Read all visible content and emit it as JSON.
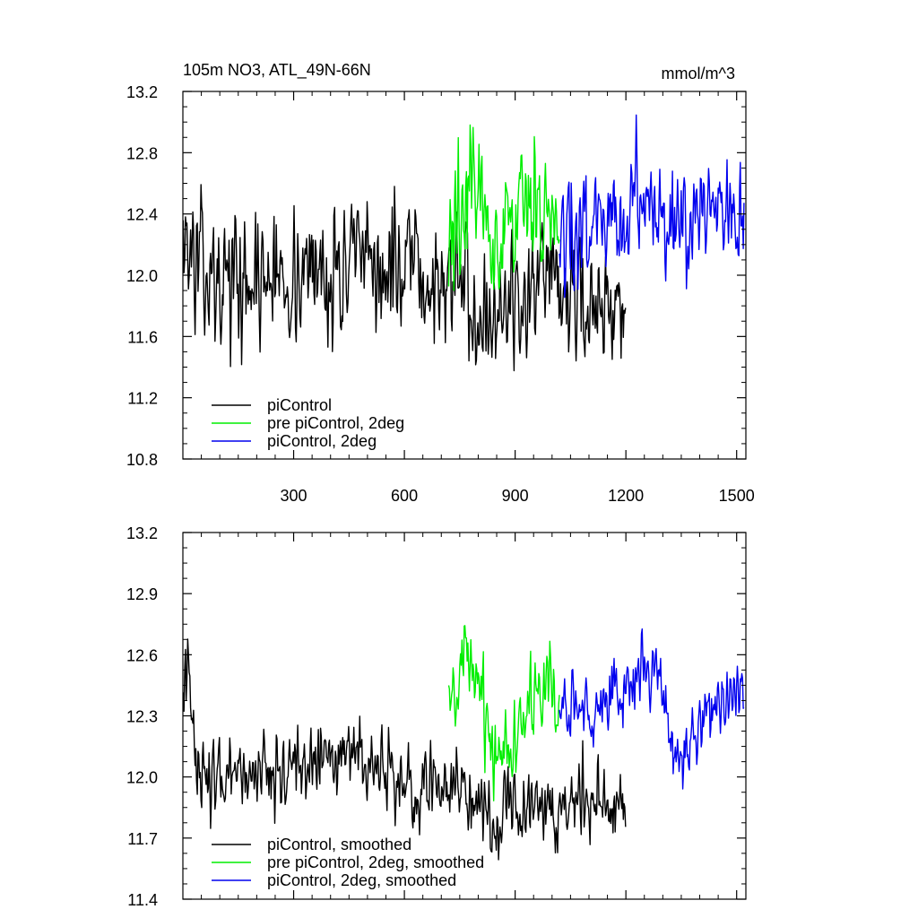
{
  "chart_data": [
    {
      "type": "line",
      "title": "105m NO3, ATL_49N-66N",
      "units_label": "mmol/m^3",
      "xlim": [
        0,
        1525
      ],
      "ylim": [
        10.8,
        13.2
      ],
      "x_ticks": [
        300,
        600,
        900,
        1200,
        1500
      ],
      "x_tick_labels": [
        "300",
        "600",
        "900",
        "1200",
        "1500"
      ],
      "y_ticks": [
        10.8,
        11.2,
        11.6,
        12.0,
        12.4,
        12.8,
        13.2
      ],
      "y_tick_labels": [
        "10.8",
        "11.2",
        "11.6",
        "12.0",
        "12.4",
        "12.8",
        "13.2"
      ],
      "legend_position": "bottom-left",
      "series": [
        {
          "name": "piControl",
          "color": "#000000",
          "x_start": 1,
          "x_end": 1200,
          "noise": 0.3,
          "trend_x": [
            0,
            20,
            100,
            300,
            500,
            700,
            750,
            850,
            900,
            1000,
            1100,
            1200
          ],
          "trend_y": [
            12.4,
            12.1,
            11.95,
            12.0,
            12.05,
            11.95,
            11.95,
            11.75,
            11.85,
            11.85,
            11.85,
            11.85
          ]
        },
        {
          "name": "pre piControl, 2deg",
          "color": "#00ee00",
          "x_start": 720,
          "x_end": 1020,
          "noise": 0.3,
          "trend_x": [
            720,
            760,
            800,
            850,
            900,
            950,
            1000,
            1020
          ],
          "trend_y": [
            12.2,
            12.5,
            12.6,
            12.2,
            12.4,
            12.4,
            12.5,
            12.2
          ]
        },
        {
          "name": "piControl, 2deg",
          "color": "#0000ee",
          "x_start": 1020,
          "x_end": 1520,
          "noise": 0.25,
          "trend_x": [
            1020,
            1100,
            1200,
            1250,
            1300,
            1350,
            1400,
            1450,
            1520
          ],
          "trend_y": [
            12.3,
            12.35,
            12.4,
            12.55,
            12.45,
            12.2,
            12.35,
            12.4,
            12.4
          ]
        }
      ]
    },
    {
      "type": "line",
      "title": "",
      "units_label": "",
      "xlim": [
        0,
        1525
      ],
      "ylim": [
        11.4,
        13.2
      ],
      "x_ticks": [
        300,
        600,
        900,
        1200,
        1500
      ],
      "x_tick_labels": [],
      "y_ticks": [
        11.4,
        11.7,
        12.0,
        12.3,
        12.6,
        12.9,
        13.2
      ],
      "y_tick_labels": [
        "11.4",
        "11.7",
        "12.0",
        "12.3",
        "12.6",
        "12.9",
        "13.2"
      ],
      "legend_position": "bottom-left",
      "series": [
        {
          "name": "piControl, smoothed",
          "color": "#000000",
          "x_start": 1,
          "x_end": 1200,
          "noise": 0.13,
          "trend_x": [
            0,
            10,
            50,
            100,
            200,
            300,
            450,
            600,
            700,
            800,
            850,
            900,
            1000,
            1100,
            1200
          ],
          "trend_y": [
            12.45,
            12.5,
            12.0,
            11.95,
            12.05,
            12.05,
            12.1,
            11.95,
            11.95,
            11.95,
            11.7,
            11.9,
            11.85,
            11.9,
            11.85
          ]
        },
        {
          "name": "pre piControl, 2deg, smoothed",
          "color": "#00ee00",
          "x_start": 720,
          "x_end": 1020,
          "noise": 0.14,
          "trend_x": [
            720,
            770,
            800,
            850,
            900,
            950,
            990,
            1020
          ],
          "trend_y": [
            12.3,
            12.55,
            12.45,
            12.1,
            12.25,
            12.35,
            12.45,
            12.3
          ]
        },
        {
          "name": "piControl, 2deg, smoothed",
          "color": "#0000ee",
          "x_start": 1020,
          "x_end": 1520,
          "noise": 0.12,
          "trend_x": [
            1020,
            1100,
            1200,
            1245,
            1300,
            1350,
            1400,
            1450,
            1520
          ],
          "trend_y": [
            12.3,
            12.35,
            12.4,
            12.6,
            12.45,
            12.0,
            12.3,
            12.35,
            12.4
          ]
        }
      ]
    }
  ]
}
